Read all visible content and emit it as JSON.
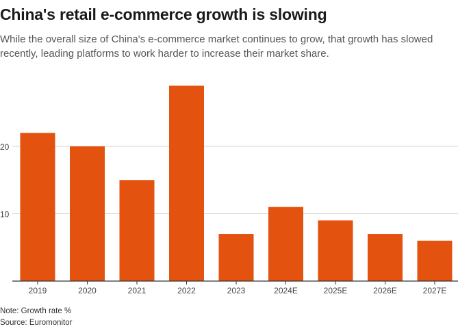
{
  "header": {
    "title": "China's retail e-commerce growth is slowing",
    "subtitle": "While the overall size of China's e-commerce market continues to grow, that growth has slowed recently, leading platforms to work harder to increase their market share."
  },
  "footer": {
    "note": "Note: Growth rate %",
    "source": "Source: Euromonitor"
  },
  "chart_data": {
    "type": "bar",
    "categories": [
      "2019",
      "2020",
      "2021",
      "2022",
      "2023",
      "2024E",
      "2025E",
      "2026E",
      "2027E"
    ],
    "values": [
      22,
      20,
      15,
      29,
      7,
      11,
      9,
      7,
      6
    ],
    "title": "China's retail e-commerce growth is slowing",
    "xlabel": "",
    "ylabel": "",
    "ylim": [
      0,
      30
    ],
    "yticks": [
      10,
      20
    ],
    "grid": true,
    "colors": {
      "bar": "#e3520f",
      "grid": "#d4d4d4",
      "axis": "#333333"
    }
  }
}
